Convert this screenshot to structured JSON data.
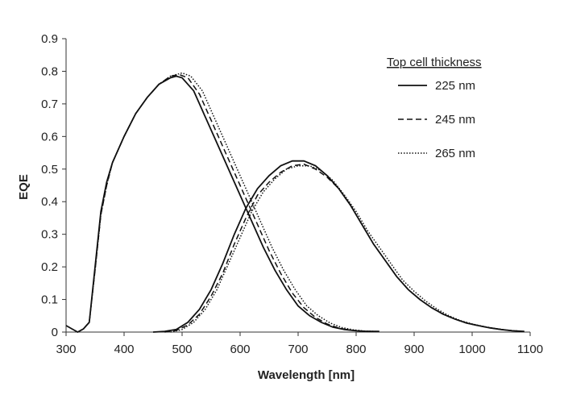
{
  "chart_data": {
    "type": "line",
    "title": "",
    "xlabel": "Wavelength [nm]",
    "ylabel": "EQE",
    "xlim": [
      300,
      1100
    ],
    "ylim": [
      0,
      0.9
    ],
    "xticks": [
      "300",
      "400",
      "500",
      "600",
      "700",
      "800",
      "900",
      "1000",
      "1100"
    ],
    "yticks": [
      "0",
      "0.1",
      "0.2",
      "0.3",
      "0.4",
      "0.5",
      "0.6",
      "0.7",
      "0.8",
      "0.9"
    ],
    "grid": false,
    "legend": {
      "title": "Top cell thickness",
      "placement": "top-right",
      "entries": [
        "225 nm",
        "245 nm",
        "265 nm"
      ]
    },
    "series": [
      {
        "name": "225 nm",
        "group": "top-cell",
        "style": "solid",
        "points": [
          [
            300,
            0.02
          ],
          [
            310,
            0.01
          ],
          [
            320,
            0.0
          ],
          [
            330,
            0.01
          ],
          [
            340,
            0.03
          ],
          [
            350,
            0.2
          ],
          [
            360,
            0.37
          ],
          [
            370,
            0.46
          ],
          [
            380,
            0.52
          ],
          [
            400,
            0.6
          ],
          [
            420,
            0.67
          ],
          [
            440,
            0.72
          ],
          [
            460,
            0.76
          ],
          [
            480,
            0.78
          ],
          [
            490,
            0.785
          ],
          [
            500,
            0.78
          ],
          [
            520,
            0.74
          ],
          [
            540,
            0.66
          ],
          [
            560,
            0.58
          ],
          [
            580,
            0.5
          ],
          [
            600,
            0.42
          ],
          [
            620,
            0.34
          ],
          [
            640,
            0.26
          ],
          [
            660,
            0.19
          ],
          [
            680,
            0.13
          ],
          [
            700,
            0.08
          ],
          [
            720,
            0.05
          ],
          [
            740,
            0.03
          ],
          [
            760,
            0.015
          ],
          [
            780,
            0.008
          ],
          [
            800,
            0.004
          ],
          [
            820,
            0.002
          ],
          [
            840,
            0.002
          ]
        ]
      },
      {
        "name": "245 nm",
        "group": "top-cell",
        "style": "dashed",
        "points": [
          [
            320,
            0.0
          ],
          [
            330,
            0.01
          ],
          [
            340,
            0.03
          ],
          [
            350,
            0.19
          ],
          [
            360,
            0.36
          ],
          [
            370,
            0.45
          ],
          [
            380,
            0.52
          ],
          [
            400,
            0.6
          ],
          [
            420,
            0.67
          ],
          [
            440,
            0.72
          ],
          [
            460,
            0.76
          ],
          [
            480,
            0.785
          ],
          [
            495,
            0.79
          ],
          [
            510,
            0.78
          ],
          [
            530,
            0.73
          ],
          [
            550,
            0.65
          ],
          [
            570,
            0.57
          ],
          [
            590,
            0.49
          ],
          [
            610,
            0.41
          ],
          [
            630,
            0.33
          ],
          [
            650,
            0.25
          ],
          [
            670,
            0.18
          ],
          [
            690,
            0.12
          ],
          [
            710,
            0.075
          ],
          [
            730,
            0.045
          ],
          [
            750,
            0.025
          ],
          [
            770,
            0.012
          ],
          [
            790,
            0.006
          ],
          [
            810,
            0.003
          ],
          [
            830,
            0.002
          ]
        ]
      },
      {
        "name": "265 nm",
        "group": "top-cell",
        "style": "dotted",
        "points": [
          [
            320,
            0.0
          ],
          [
            330,
            0.01
          ],
          [
            340,
            0.03
          ],
          [
            350,
            0.19
          ],
          [
            360,
            0.36
          ],
          [
            370,
            0.45
          ],
          [
            380,
            0.52
          ],
          [
            400,
            0.6
          ],
          [
            420,
            0.67
          ],
          [
            440,
            0.72
          ],
          [
            460,
            0.76
          ],
          [
            480,
            0.785
          ],
          [
            500,
            0.795
          ],
          [
            515,
            0.785
          ],
          [
            535,
            0.74
          ],
          [
            555,
            0.66
          ],
          [
            575,
            0.58
          ],
          [
            595,
            0.5
          ],
          [
            615,
            0.42
          ],
          [
            635,
            0.34
          ],
          [
            655,
            0.26
          ],
          [
            675,
            0.19
          ],
          [
            695,
            0.13
          ],
          [
            715,
            0.08
          ],
          [
            735,
            0.05
          ],
          [
            755,
            0.028
          ],
          [
            775,
            0.014
          ],
          [
            795,
            0.007
          ],
          [
            815,
            0.003
          ],
          [
            835,
            0.002
          ]
        ]
      },
      {
        "name": "225 nm",
        "group": "bottom-cell",
        "style": "solid",
        "points": [
          [
            450,
            0.0
          ],
          [
            470,
            0.002
          ],
          [
            490,
            0.008
          ],
          [
            510,
            0.03
          ],
          [
            530,
            0.07
          ],
          [
            550,
            0.13
          ],
          [
            570,
            0.21
          ],
          [
            590,
            0.3
          ],
          [
            610,
            0.38
          ],
          [
            630,
            0.44
          ],
          [
            650,
            0.48
          ],
          [
            670,
            0.51
          ],
          [
            690,
            0.525
          ],
          [
            710,
            0.525
          ],
          [
            730,
            0.51
          ],
          [
            750,
            0.48
          ],
          [
            770,
            0.44
          ],
          [
            790,
            0.39
          ],
          [
            810,
            0.33
          ],
          [
            830,
            0.27
          ],
          [
            850,
            0.22
          ],
          [
            870,
            0.17
          ],
          [
            890,
            0.13
          ],
          [
            910,
            0.1
          ],
          [
            930,
            0.075
          ],
          [
            950,
            0.055
          ],
          [
            970,
            0.04
          ],
          [
            990,
            0.028
          ],
          [
            1010,
            0.02
          ],
          [
            1030,
            0.013
          ],
          [
            1050,
            0.008
          ],
          [
            1070,
            0.004
          ],
          [
            1090,
            0.002
          ]
        ]
      },
      {
        "name": "245 nm",
        "group": "bottom-cell",
        "style": "dashed",
        "points": [
          [
            470,
            0.0
          ],
          [
            490,
            0.005
          ],
          [
            510,
            0.022
          ],
          [
            530,
            0.055
          ],
          [
            550,
            0.11
          ],
          [
            570,
            0.18
          ],
          [
            590,
            0.27
          ],
          [
            610,
            0.35
          ],
          [
            630,
            0.42
          ],
          [
            650,
            0.46
          ],
          [
            670,
            0.49
          ],
          [
            690,
            0.51
          ],
          [
            710,
            0.515
          ],
          [
            730,
            0.5
          ],
          [
            750,
            0.475
          ],
          [
            770,
            0.44
          ],
          [
            790,
            0.39
          ],
          [
            810,
            0.33
          ],
          [
            830,
            0.27
          ],
          [
            850,
            0.22
          ],
          [
            870,
            0.17
          ],
          [
            890,
            0.13
          ],
          [
            910,
            0.1
          ],
          [
            930,
            0.075
          ],
          [
            950,
            0.055
          ],
          [
            970,
            0.04
          ],
          [
            990,
            0.028
          ],
          [
            1010,
            0.02
          ],
          [
            1030,
            0.013
          ],
          [
            1050,
            0.008
          ],
          [
            1070,
            0.004
          ],
          [
            1090,
            0.002
          ]
        ]
      },
      {
        "name": "265 nm",
        "group": "bottom-cell",
        "style": "dotted",
        "points": [
          [
            480,
            0.0
          ],
          [
            500,
            0.008
          ],
          [
            520,
            0.03
          ],
          [
            540,
            0.07
          ],
          [
            560,
            0.13
          ],
          [
            580,
            0.21
          ],
          [
            600,
            0.29
          ],
          [
            620,
            0.37
          ],
          [
            640,
            0.43
          ],
          [
            660,
            0.47
          ],
          [
            680,
            0.5
          ],
          [
            700,
            0.51
          ],
          [
            720,
            0.51
          ],
          [
            740,
            0.495
          ],
          [
            760,
            0.465
          ],
          [
            780,
            0.42
          ],
          [
            800,
            0.37
          ],
          [
            820,
            0.31
          ],
          [
            840,
            0.26
          ],
          [
            860,
            0.21
          ],
          [
            880,
            0.16
          ],
          [
            900,
            0.125
          ],
          [
            920,
            0.095
          ],
          [
            940,
            0.07
          ],
          [
            960,
            0.05
          ],
          [
            980,
            0.035
          ],
          [
            1000,
            0.025
          ],
          [
            1020,
            0.017
          ],
          [
            1040,
            0.011
          ],
          [
            1060,
            0.006
          ],
          [
            1080,
            0.003
          ]
        ]
      }
    ]
  }
}
